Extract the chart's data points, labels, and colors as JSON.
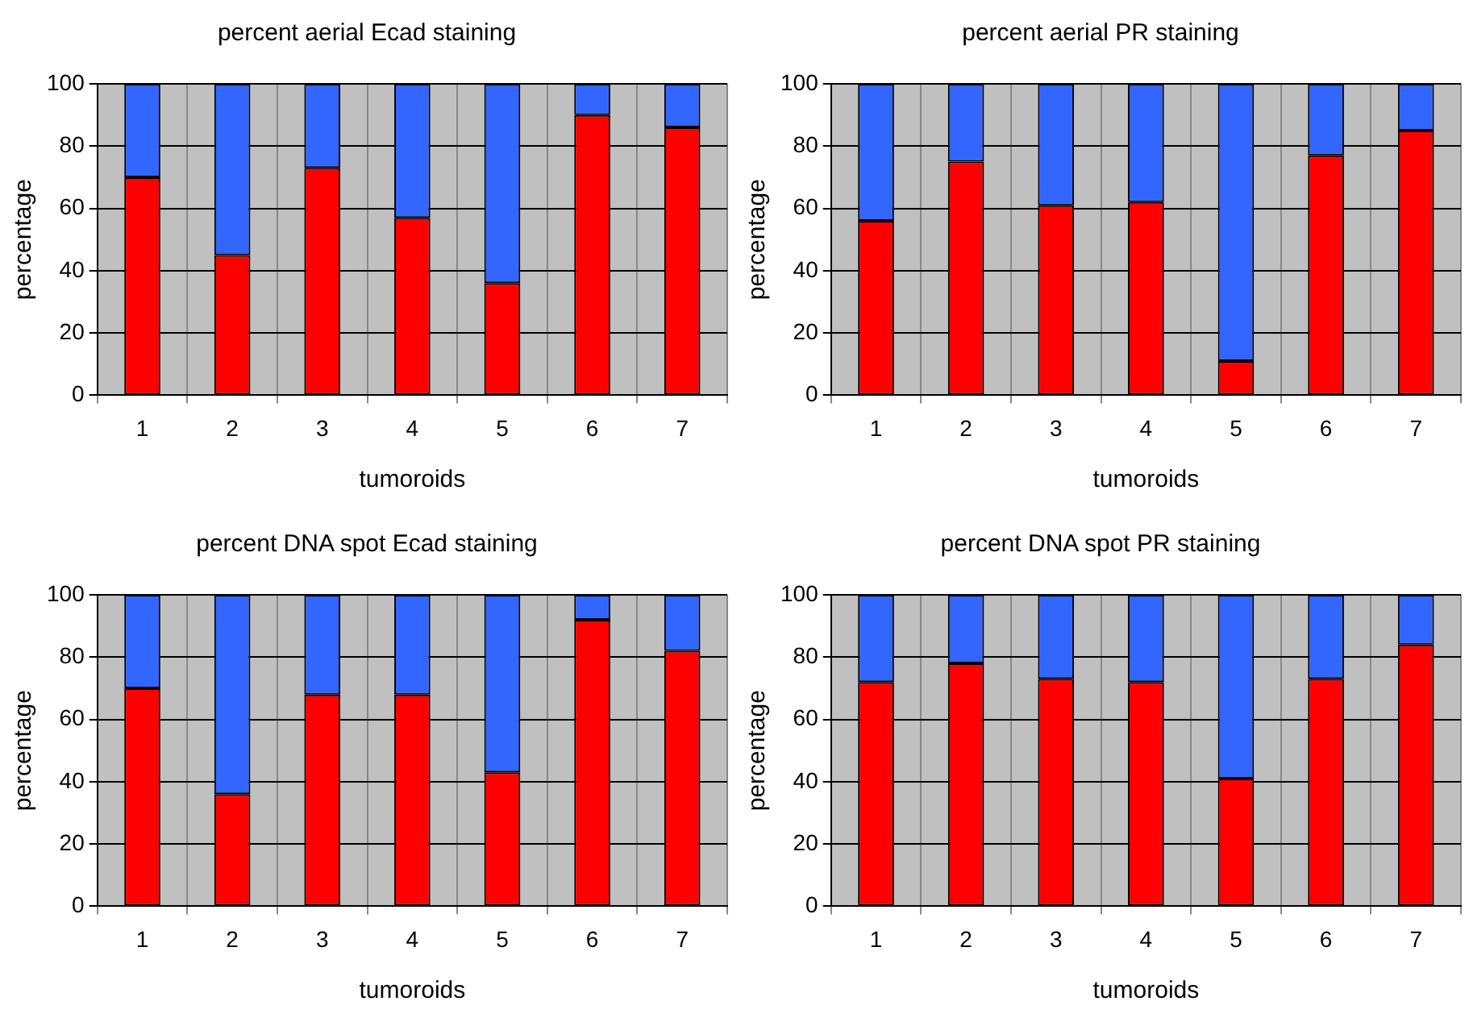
{
  "chart_data": [
    {
      "type": "bar",
      "title": "percent aerial Ecad staining",
      "xlabel": "tumoroids",
      "ylabel": "percentage",
      "categories": [
        "1",
        "2",
        "3",
        "4",
        "5",
        "6",
        "7"
      ],
      "stacked": true,
      "ylim": [
        0,
        100
      ],
      "yticks": [
        0,
        20,
        40,
        60,
        80,
        100
      ],
      "grid": true,
      "legend": false,
      "series": [
        {
          "color": "#ff0000",
          "values": [
            70,
            45,
            73,
            57,
            36,
            90,
            86
          ]
        },
        {
          "color": "#3366ff",
          "values": [
            30,
            55,
            27,
            43,
            64,
            10,
            14
          ]
        }
      ]
    },
    {
      "type": "bar",
      "title": "percent aerial PR staining",
      "xlabel": "tumoroids",
      "ylabel": "percentage",
      "categories": [
        "1",
        "2",
        "3",
        "4",
        "5",
        "6",
        "7"
      ],
      "stacked": true,
      "ylim": [
        0,
        100
      ],
      "yticks": [
        0,
        20,
        40,
        60,
        80,
        100
      ],
      "grid": true,
      "legend": false,
      "series": [
        {
          "color": "#ff0000",
          "values": [
            56,
            75,
            61,
            62,
            11,
            77,
            85
          ]
        },
        {
          "color": "#3366ff",
          "values": [
            44,
            25,
            39,
            38,
            89,
            23,
            15
          ]
        }
      ]
    },
    {
      "type": "bar",
      "title": "percent DNA spot Ecad staining",
      "xlabel": "tumoroids",
      "ylabel": "percentage",
      "categories": [
        "1",
        "2",
        "3",
        "4",
        "5",
        "6",
        "7"
      ],
      "stacked": true,
      "ylim": [
        0,
        100
      ],
      "yticks": [
        0,
        20,
        40,
        60,
        80,
        100
      ],
      "grid": true,
      "legend": false,
      "series": [
        {
          "color": "#ff0000",
          "values": [
            70,
            36,
            68,
            68,
            43,
            92,
            82
          ]
        },
        {
          "color": "#3366ff",
          "values": [
            30,
            64,
            32,
            32,
            57,
            8,
            18
          ]
        }
      ]
    },
    {
      "type": "bar",
      "title": "percent DNA spot PR staining",
      "xlabel": "tumoroids",
      "ylabel": "percentage",
      "categories": [
        "1",
        "2",
        "3",
        "4",
        "5",
        "6",
        "7"
      ],
      "stacked": true,
      "ylim": [
        0,
        100
      ],
      "yticks": [
        0,
        20,
        40,
        60,
        80,
        100
      ],
      "grid": true,
      "legend": false,
      "series": [
        {
          "color": "#ff0000",
          "values": [
            72,
            78,
            73,
            72,
            41,
            73,
            84
          ]
        },
        {
          "color": "#3366ff",
          "values": [
            28,
            22,
            27,
            28,
            59,
            27,
            16
          ]
        }
      ]
    }
  ]
}
